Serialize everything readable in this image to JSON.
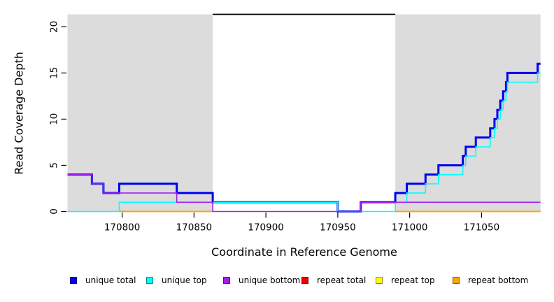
{
  "chart_data": {
    "type": "line",
    "subtype": "step",
    "xlabel": "Coordinate in Reference Genome",
    "ylabel": "Read Coverage Depth",
    "xlim": [
      170762,
      171091
    ],
    "ylim": [
      0,
      21.35
    ],
    "x_ticks": [
      170800,
      170850,
      170900,
      170950,
      171000,
      171050
    ],
    "y_ticks": [
      0,
      5,
      10,
      15,
      20
    ],
    "grid": "off",
    "background_color": "#FFFFFF",
    "shaded_color": "#DCDCDC",
    "shaded_regions": [
      [
        170762,
        170863
      ],
      [
        170990,
        171091
      ]
    ],
    "top_segment": {
      "x1": 170863,
      "x2": 170990,
      "y": 21.35,
      "color": "#000000"
    },
    "series": [
      {
        "id": "unique-total",
        "name": "unique total",
        "color": "#0000EE",
        "width": 3,
        "steps": [
          [
            170762,
            4
          ],
          [
            170779,
            3
          ],
          [
            170787,
            2
          ],
          [
            170798,
            3
          ],
          [
            170838,
            2
          ],
          [
            170863,
            1
          ],
          [
            170950,
            0
          ],
          [
            170966,
            1
          ],
          [
            170990,
            2
          ],
          [
            170998,
            3
          ],
          [
            171011,
            4
          ],
          [
            171020,
            5
          ],
          [
            171037,
            6
          ],
          [
            171039,
            7
          ],
          [
            171046,
            8
          ],
          [
            171056,
            9
          ],
          [
            171059,
            10
          ],
          [
            171061,
            11
          ],
          [
            171063,
            12
          ],
          [
            171065,
            13
          ],
          [
            171067,
            14
          ],
          [
            171068,
            15
          ],
          [
            171089,
            16
          ]
        ]
      },
      {
        "id": "unique-top",
        "name": "unique top",
        "color": "#00FFFF",
        "width": 1.6,
        "steps": [
          [
            170762,
            0
          ],
          [
            170798,
            1
          ],
          [
            170950,
            0
          ],
          [
            170990,
            1
          ],
          [
            170998,
            2
          ],
          [
            171011,
            3
          ],
          [
            171020,
            4
          ],
          [
            171037,
            5
          ],
          [
            171039,
            6
          ],
          [
            171046,
            7
          ],
          [
            171056,
            8
          ],
          [
            171059,
            9
          ],
          [
            171061,
            10
          ],
          [
            171063,
            11
          ],
          [
            171065,
            12
          ],
          [
            171067,
            13
          ],
          [
            171068,
            14
          ],
          [
            171089,
            15
          ]
        ]
      },
      {
        "id": "unique-bottom",
        "name": "unique bottom",
        "color": "#A020F0",
        "width": 1.6,
        "steps": [
          [
            170762,
            4
          ],
          [
            170779,
            3
          ],
          [
            170787,
            2
          ],
          [
            170838,
            1
          ],
          [
            170863,
            0
          ],
          [
            170966,
            1
          ]
        ]
      },
      {
        "id": "repeat-total",
        "name": "repeat total",
        "color": "#EE0000",
        "width": 1.4,
        "value": 0,
        "segments": [
          [
            170798,
            170863
          ],
          [
            170990,
            171091
          ]
        ]
      },
      {
        "id": "repeat-top",
        "name": "repeat top",
        "color": "#FFFF00",
        "width": 1.4,
        "value": 0,
        "segments": [
          [
            170798,
            170863
          ],
          [
            170990,
            171091
          ]
        ]
      },
      {
        "id": "repeat-bottom",
        "name": "repeat bottom",
        "color": "#FFA500",
        "width": 2,
        "value": 0,
        "segments": [
          [
            170798,
            170863
          ],
          [
            170990,
            171091
          ]
        ]
      }
    ],
    "legend": [
      {
        "id": "unique-total",
        "label": "unique total",
        "color": "#0000EE"
      },
      {
        "id": "unique-top",
        "label": "unique top",
        "color": "#00FFFF"
      },
      {
        "id": "unique-bottom",
        "label": "unique bottom",
        "color": "#A020F0"
      },
      {
        "id": "repeat-total",
        "label": "repeat total",
        "color": "#EE0000"
      },
      {
        "id": "repeat-top",
        "label": "repeat top",
        "color": "#FFFF00"
      },
      {
        "id": "repeat-bottom",
        "label": "repeat bottom",
        "color": "#FFA500"
      }
    ],
    "legend_position": "bottom"
  }
}
